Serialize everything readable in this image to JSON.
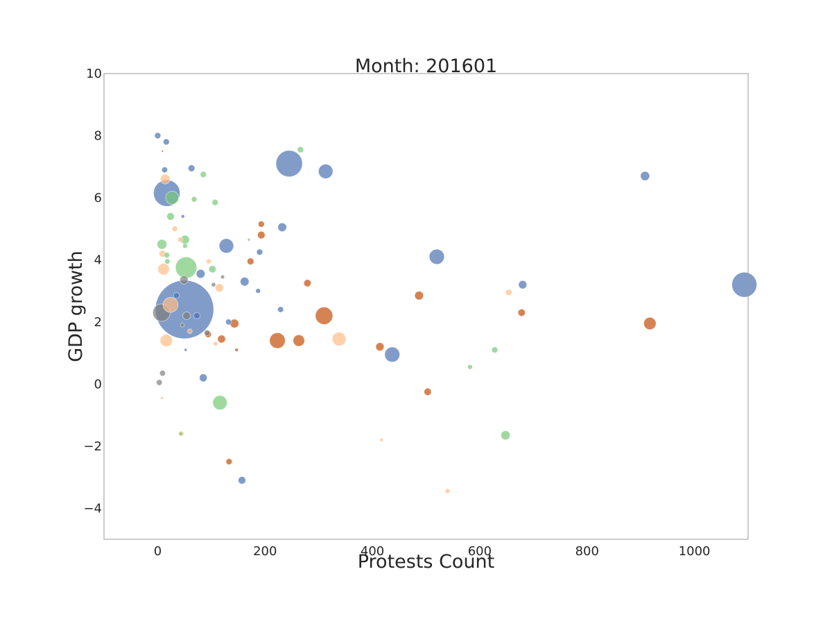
{
  "chart_data": {
    "type": "scatter",
    "title": "Month: 201601",
    "xlabel": "Protests Count",
    "ylabel": "GDP growth",
    "xlim": [
      -100,
      1100
    ],
    "ylim": [
      -5,
      10
    ],
    "xticks": [
      0,
      200,
      400,
      600,
      800,
      1000
    ],
    "yticks": [
      -4,
      -2,
      0,
      2,
      4,
      6,
      8,
      10
    ],
    "grid": false,
    "legend": "none",
    "colors": {
      "blue": "#4c72b0",
      "orange": "#c44e0a",
      "green": "#77c977",
      "peach": "#ffbe86",
      "gray": "#7f7f7f"
    },
    "points": [
      {
        "x": 50,
        "y": 2.4,
        "s": 900,
        "c": "blue"
      },
      {
        "x": 245,
        "y": 7.1,
        "s": 185,
        "c": "blue"
      },
      {
        "x": 17,
        "y": 6.15,
        "s": 185,
        "c": "blue"
      },
      {
        "x": 1093,
        "y": 3.2,
        "s": 165,
        "c": "blue"
      },
      {
        "x": 313,
        "y": 6.85,
        "s": 55,
        "c": "blue"
      },
      {
        "x": 520,
        "y": 4.1,
        "s": 60,
        "c": "blue"
      },
      {
        "x": 437,
        "y": 0.95,
        "s": 60,
        "c": "blue"
      },
      {
        "x": 128,
        "y": 4.45,
        "s": 55,
        "c": "blue"
      },
      {
        "x": 908,
        "y": 6.7,
        "s": 22,
        "c": "blue"
      },
      {
        "x": 680,
        "y": 3.2,
        "s": 18,
        "c": "blue"
      },
      {
        "x": 232,
        "y": 5.05,
        "s": 20,
        "c": "blue"
      },
      {
        "x": 162,
        "y": 3.3,
        "s": 20,
        "c": "blue"
      },
      {
        "x": 157,
        "y": -3.1,
        "s": 15,
        "c": "blue"
      },
      {
        "x": 85,
        "y": 0.2,
        "s": 16,
        "c": "blue"
      },
      {
        "x": 80,
        "y": 3.55,
        "s": 20,
        "c": "blue"
      },
      {
        "x": 63,
        "y": 6.95,
        "s": 12,
        "c": "blue"
      },
      {
        "x": 0,
        "y": 8.0,
        "s": 10,
        "c": "blue"
      },
      {
        "x": 16,
        "y": 7.8,
        "s": 10,
        "c": "blue"
      },
      {
        "x": 13,
        "y": 6.9,
        "s": 9,
        "c": "blue"
      },
      {
        "x": 190,
        "y": 4.25,
        "s": 10,
        "c": "blue"
      },
      {
        "x": 229,
        "y": 2.4,
        "s": 9,
        "c": "blue"
      },
      {
        "x": 132,
        "y": 2.0,
        "s": 9,
        "c": "blue"
      },
      {
        "x": 187,
        "y": 3.0,
        "s": 6,
        "c": "blue"
      },
      {
        "x": 73,
        "y": 2.2,
        "s": 11,
        "c": "blue"
      },
      {
        "x": 35,
        "y": 2.85,
        "s": 9,
        "c": "blue"
      },
      {
        "x": 47,
        "y": 5.4,
        "s": 3,
        "c": "blue"
      },
      {
        "x": 52,
        "y": 1.1,
        "s": 2,
        "c": "blue"
      },
      {
        "x": 310,
        "y": 2.2,
        "s": 80,
        "c": "orange"
      },
      {
        "x": 223,
        "y": 1.4,
        "s": 65,
        "c": "orange"
      },
      {
        "x": 917,
        "y": 1.95,
        "s": 40,
        "c": "orange"
      },
      {
        "x": 263,
        "y": 1.4,
        "s": 35,
        "c": "orange"
      },
      {
        "x": 487,
        "y": 2.85,
        "s": 20,
        "c": "orange"
      },
      {
        "x": 414,
        "y": 1.2,
        "s": 18,
        "c": "orange"
      },
      {
        "x": 143,
        "y": 1.95,
        "s": 20,
        "c": "orange"
      },
      {
        "x": 119,
        "y": 1.45,
        "s": 16,
        "c": "orange"
      },
      {
        "x": 193,
        "y": 4.8,
        "s": 15,
        "c": "orange"
      },
      {
        "x": 193,
        "y": 5.15,
        "s": 10,
        "c": "orange"
      },
      {
        "x": 279,
        "y": 3.25,
        "s": 14,
        "c": "orange"
      },
      {
        "x": 173,
        "y": 3.95,
        "s": 12,
        "c": "orange"
      },
      {
        "x": 678,
        "y": 2.3,
        "s": 14,
        "c": "orange"
      },
      {
        "x": 503,
        "y": -0.25,
        "s": 14,
        "c": "orange"
      },
      {
        "x": 133,
        "y": -2.5,
        "s": 10,
        "c": "orange"
      },
      {
        "x": 94,
        "y": 1.6,
        "s": 11,
        "c": "orange"
      },
      {
        "x": 147,
        "y": 1.1,
        "s": 3,
        "c": "orange"
      },
      {
        "x": 9,
        "y": 7.5,
        "s": 1,
        "c": "orange"
      },
      {
        "x": 53,
        "y": 3.75,
        "s": 120,
        "c": "green"
      },
      {
        "x": 116,
        "y": -0.6,
        "s": 55,
        "c": "green"
      },
      {
        "x": 648,
        "y": -1.65,
        "s": 22,
        "c": "green"
      },
      {
        "x": 27,
        "y": 6.0,
        "s": 45,
        "c": "green"
      },
      {
        "x": 8,
        "y": 4.5,
        "s": 25,
        "c": "green"
      },
      {
        "x": 51,
        "y": 4.65,
        "s": 20,
        "c": "green"
      },
      {
        "x": 24,
        "y": 5.4,
        "s": 15,
        "c": "green"
      },
      {
        "x": 102,
        "y": 3.7,
        "s": 14,
        "c": "green"
      },
      {
        "x": 266,
        "y": 7.55,
        "s": 10,
        "c": "green"
      },
      {
        "x": 85,
        "y": 6.75,
        "s": 10,
        "c": "green"
      },
      {
        "x": 107,
        "y": 5.85,
        "s": 10,
        "c": "green"
      },
      {
        "x": 68,
        "y": 5.95,
        "s": 8,
        "c": "green"
      },
      {
        "x": 628,
        "y": 1.1,
        "s": 10,
        "c": "green"
      },
      {
        "x": 582,
        "y": 0.55,
        "s": 6,
        "c": "green"
      },
      {
        "x": 17,
        "y": 4.15,
        "s": 8,
        "c": "green"
      },
      {
        "x": 18,
        "y": 3.95,
        "s": 7,
        "c": "green"
      },
      {
        "x": 51,
        "y": 4.45,
        "s": 6,
        "c": "green"
      },
      {
        "x": 43,
        "y": -1.6,
        "s": 4,
        "c": "green"
      },
      {
        "x": 170,
        "y": 4.65,
        "s": 2,
        "c": "green"
      },
      {
        "x": 338,
        "y": 1.45,
        "s": 50,
        "c": "peach"
      },
      {
        "x": 24,
        "y": 2.55,
        "s": 60,
        "c": "peach"
      },
      {
        "x": 11,
        "y": 3.7,
        "s": 35,
        "c": "peach"
      },
      {
        "x": 16,
        "y": 1.4,
        "s": 40,
        "c": "peach"
      },
      {
        "x": 14,
        "y": 6.6,
        "s": 25,
        "c": "peach"
      },
      {
        "x": 115,
        "y": 3.1,
        "s": 18,
        "c": "peach"
      },
      {
        "x": 9,
        "y": 4.2,
        "s": 12,
        "c": "peach"
      },
      {
        "x": 654,
        "y": 2.95,
        "s": 10,
        "c": "peach"
      },
      {
        "x": 32,
        "y": 5.0,
        "s": 8,
        "c": "peach"
      },
      {
        "x": 42,
        "y": 4.65,
        "s": 7,
        "c": "peach"
      },
      {
        "x": 44,
        "y": -1.6,
        "s": 8,
        "c": "peach"
      },
      {
        "x": 95,
        "y": 3.95,
        "s": 6,
        "c": "peach"
      },
      {
        "x": 60,
        "y": 1.7,
        "s": 6,
        "c": "peach"
      },
      {
        "x": 540,
        "y": -3.45,
        "s": 6,
        "c": "peach"
      },
      {
        "x": 417,
        "y": -1.8,
        "s": 3,
        "c": "peach"
      },
      {
        "x": 108,
        "y": 1.3,
        "s": 5,
        "c": "peach"
      },
      {
        "x": 8,
        "y": -0.45,
        "s": 2,
        "c": "peach"
      },
      {
        "x": 7,
        "y": 2.3,
        "s": 80,
        "c": "gray"
      },
      {
        "x": 49,
        "y": 3.35,
        "s": 18,
        "c": "gray"
      },
      {
        "x": 54,
        "y": 2.2,
        "s": 16,
        "c": "gray"
      },
      {
        "x": 3,
        "y": 0.05,
        "s": 9,
        "c": "gray"
      },
      {
        "x": 9,
        "y": 0.35,
        "s": 9,
        "c": "gray"
      },
      {
        "x": 92,
        "y": 1.65,
        "s": 9,
        "c": "gray"
      },
      {
        "x": 104,
        "y": 3.2,
        "s": 5,
        "c": "gray"
      },
      {
        "x": 121,
        "y": 3.45,
        "s": 4,
        "c": "gray"
      },
      {
        "x": 46,
        "y": 1.9,
        "s": 4,
        "c": "gray"
      }
    ]
  }
}
